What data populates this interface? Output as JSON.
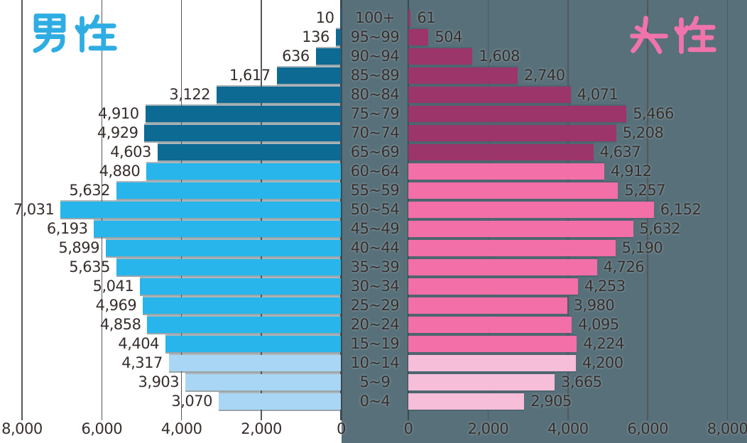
{
  "titles": {
    "male": "男性",
    "female": "女性"
  },
  "colors": {
    "background_left": "#FFFFFF",
    "background_right": "#57707A",
    "grid": "#54575B",
    "zero_axis": "#3E4A50",
    "text": "#362E2C",
    "male": {
      "dark": "#0D6A93",
      "mid": "#27B5EB",
      "light": "#A9D6F4",
      "title": "#2FADE3"
    },
    "female": {
      "dark": "#9C3569",
      "mid": "#F26FA7",
      "light": "#F6BED9",
      "title": "#F173AC"
    }
  },
  "chart_data": {
    "type": "bar",
    "subtype": "population-pyramid",
    "orientation": "horizontal",
    "grid": true,
    "age_groups": [
      "100+",
      "95~99",
      "90~94",
      "85~89",
      "80~84",
      "75~79",
      "70~74",
      "65~69",
      "60~64",
      "55~59",
      "50~54",
      "45~49",
      "40~44",
      "35~39",
      "30~34",
      "25~29",
      "20~24",
      "15~19",
      "10~14",
      "5~9",
      "0~4"
    ],
    "tiers": [
      "dark",
      "dark",
      "dark",
      "dark",
      "dark",
      "dark",
      "dark",
      "dark",
      "mid",
      "mid",
      "mid",
      "mid",
      "mid",
      "mid",
      "mid",
      "mid",
      "mid",
      "mid",
      "light",
      "light",
      "light"
    ],
    "series": [
      {
        "name": "男性",
        "side": "left",
        "values": [
          10,
          136,
          636,
          1617,
          3122,
          4910,
          4929,
          4603,
          4880,
          5632,
          7031,
          6193,
          5899,
          5635,
          5041,
          4969,
          4858,
          4404,
          4317,
          3903,
          3070
        ]
      },
      {
        "name": "女性",
        "side": "right",
        "values": [
          61,
          504,
          1608,
          2740,
          4071,
          5466,
          5208,
          4637,
          4912,
          5257,
          6152,
          5632,
          5190,
          4726,
          4253,
          3980,
          4095,
          4224,
          4200,
          3665,
          2905
        ]
      }
    ],
    "axis": {
      "tick_values": [
        0,
        2000,
        4000,
        6000,
        8000
      ],
      "tick_labels": [
        "0",
        "2,000",
        "4,000",
        "6,000",
        "8,000"
      ],
      "max": 8000
    }
  }
}
